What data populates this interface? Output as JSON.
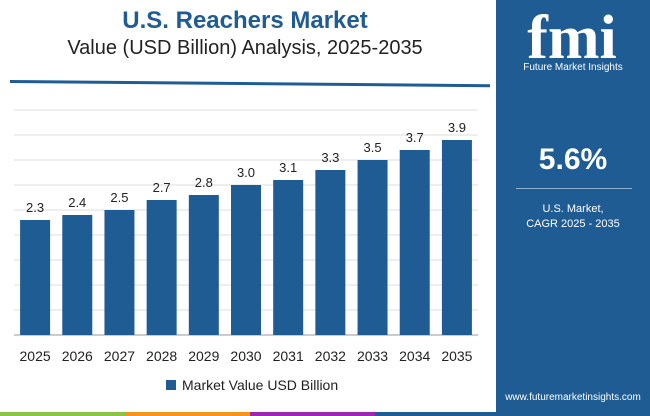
{
  "header": {
    "title": "U.S. Reachers Market",
    "subtitle": "Value (USD Billion) Analysis, 2025-2035"
  },
  "chart_data": {
    "type": "bar",
    "categories": [
      "2025",
      "2026",
      "2027",
      "2028",
      "2029",
      "2030",
      "2031",
      "2032",
      "2033",
      "2034",
      "2035"
    ],
    "series": [
      {
        "name": "Market Value USD Billion",
        "values": [
          2.3,
          2.4,
          2.5,
          2.7,
          2.8,
          3.0,
          3.1,
          3.3,
          3.5,
          3.7,
          3.9
        ]
      }
    ],
    "data_labels": [
      "2.3",
      "2.4",
      "2.5",
      "2.7",
      "2.8",
      "3.0",
      "3.1",
      "3.3",
      "3.5",
      "3.7",
      "3.9"
    ],
    "ylim": [
      0,
      4.7
    ],
    "grid": true,
    "legend_position": "bottom",
    "colors": {
      "bar": "#1f5c94",
      "grid": "#dddddd"
    }
  },
  "legend": {
    "label": "Market Value USD Billion"
  },
  "sidebar": {
    "logo_letters": "fmi",
    "logo_caption": "Future Market Insights",
    "cagr_value": "5.6%",
    "cagr_line1": "U.S. Market,",
    "cagr_line2": "CAGR 2025 - 2035",
    "website": "www.futuremarketinsights.com"
  },
  "accent_colors": [
    "#8bc34a",
    "#f7941d",
    "#9c27b0",
    "#1f5c94"
  ]
}
